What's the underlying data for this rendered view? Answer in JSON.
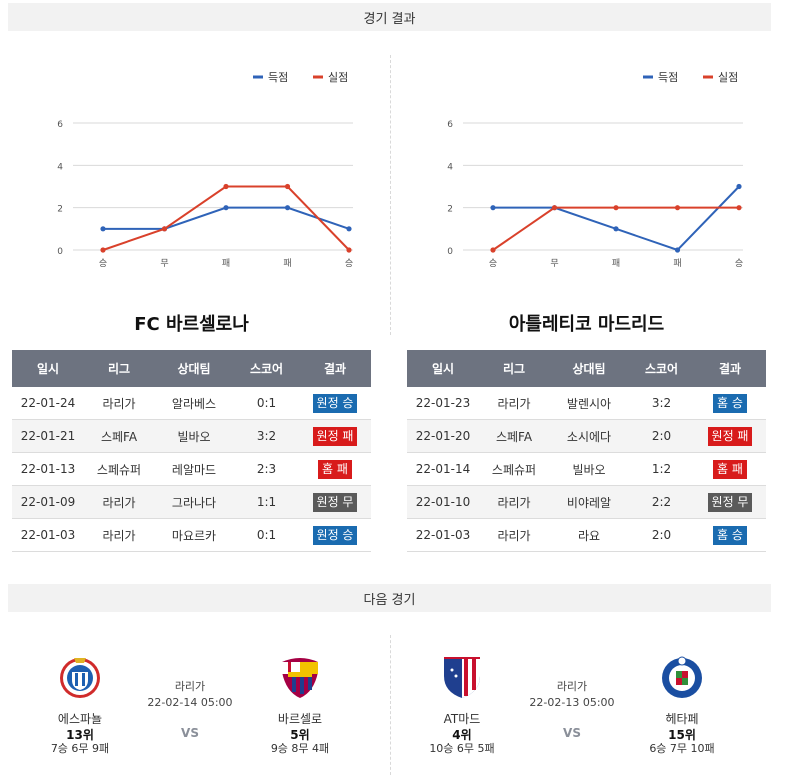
{
  "sections": {
    "results_title": "경기 결과",
    "next_title": "다음 경기"
  },
  "charts": {
    "legend": {
      "scored": "득점",
      "conceded": "실점"
    },
    "colors": {
      "scored": "#2f63b8",
      "conceded": "#d9412b",
      "grid": "#d9d9d9"
    }
  },
  "chart_data": [
    {
      "type": "line",
      "x": [
        "승",
        "무",
        "패",
        "패",
        "승"
      ],
      "ylim": [
        0,
        6
      ],
      "yticks": [
        0,
        2,
        4,
        6
      ],
      "grid": true,
      "legend_position": "top-right",
      "series": [
        {
          "name": "득점",
          "values": [
            1,
            1,
            2,
            2,
            1
          ]
        },
        {
          "name": "실점",
          "values": [
            0,
            1,
            3,
            3,
            0
          ]
        }
      ]
    },
    {
      "type": "line",
      "x": [
        "승",
        "무",
        "패",
        "패",
        "승"
      ],
      "ylim": [
        0,
        6
      ],
      "yticks": [
        0,
        2,
        4,
        6
      ],
      "grid": true,
      "legend_position": "top-right",
      "series": [
        {
          "name": "득점",
          "values": [
            2,
            2,
            1,
            0,
            3
          ]
        },
        {
          "name": "실점",
          "values": [
            0,
            2,
            2,
            2,
            2
          ]
        }
      ]
    }
  ],
  "teams": [
    {
      "name": "FC 바르셀로나",
      "headers": [
        "일시",
        "리그",
        "상대팀",
        "스코어",
        "결과"
      ],
      "rows": [
        {
          "date": "22-01-24",
          "league": "라리가",
          "opponent": "알라베스",
          "score": "0:1",
          "result": "원정 승",
          "color": "#1a6bb0"
        },
        {
          "date": "22-01-21",
          "league": "스페FA",
          "opponent": "빌바오",
          "score": "3:2",
          "result": "원정 패",
          "color": "#d81b1b"
        },
        {
          "date": "22-01-13",
          "league": "스페슈퍼",
          "opponent": "레알마드",
          "score": "2:3",
          "result": "홈 패",
          "color": "#d81b1b"
        },
        {
          "date": "22-01-09",
          "league": "라리가",
          "opponent": "그라나다",
          "score": "1:1",
          "result": "원정 무",
          "color": "#5a5a5a"
        },
        {
          "date": "22-01-03",
          "league": "라리가",
          "opponent": "마요르카",
          "score": "0:1",
          "result": "원정 승",
          "color": "#1a6bb0"
        }
      ]
    },
    {
      "name": "아틀레티코 마드리드",
      "headers": [
        "일시",
        "리그",
        "상대팀",
        "스코어",
        "결과"
      ],
      "rows": [
        {
          "date": "22-01-23",
          "league": "라리가",
          "opponent": "발렌시아",
          "score": "3:2",
          "result": "홈 승",
          "color": "#1a6bb0"
        },
        {
          "date": "22-01-20",
          "league": "스페FA",
          "opponent": "소시에다",
          "score": "2:0",
          "result": "원정 패",
          "color": "#d81b1b"
        },
        {
          "date": "22-01-14",
          "league": "스페슈퍼",
          "opponent": "빌바오",
          "score": "1:2",
          "result": "홈 패",
          "color": "#d81b1b"
        },
        {
          "date": "22-01-10",
          "league": "라리가",
          "opponent": "비야레알",
          "score": "2:2",
          "result": "원정 무",
          "color": "#5a5a5a"
        },
        {
          "date": "22-01-03",
          "league": "라리가",
          "opponent": "라요",
          "score": "2:0",
          "result": "홈 승",
          "color": "#1a6bb0"
        }
      ]
    }
  ],
  "next_matches": [
    {
      "league": "라리가",
      "datetime": "22-02-14 05:00",
      "vs": "VS",
      "home": {
        "name": "에스파뇰",
        "rank": "13위",
        "record": "7승 6무 9패",
        "logo": "espanyol-logo"
      },
      "away": {
        "name": "바르셀로",
        "rank": "5위",
        "record": "9승 8무 4패",
        "logo": "barcelona-logo"
      }
    },
    {
      "league": "라리가",
      "datetime": "22-02-13 05:00",
      "vs": "VS",
      "home": {
        "name": "AT마드",
        "rank": "4위",
        "record": "10승 6무 5패",
        "logo": "atletico-logo"
      },
      "away": {
        "name": "헤타페",
        "rank": "15위",
        "record": "6승 7무 10패",
        "logo": "getafe-logo"
      }
    }
  ]
}
